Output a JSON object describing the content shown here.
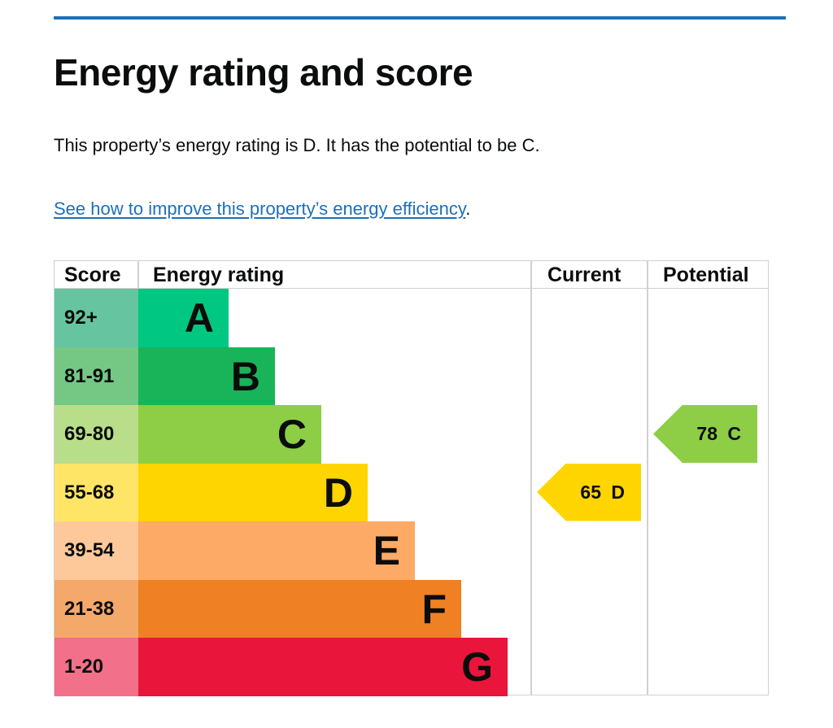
{
  "heading": "Energy rating and score",
  "summary": "This property’s energy rating is D. It has the potential to be C.",
  "link_text": "See how to improve this property’s energy efficiency",
  "link_suffix": ".",
  "accent_color": "#1d70b8",
  "table": {
    "headers": {
      "score": "Score",
      "rating": "Energy rating",
      "current": "Current",
      "potential": "Potential"
    },
    "bands": [
      {
        "score": "92+",
        "letter": "A",
        "color": "#00c781",
        "score_color": "#66c5a0"
      },
      {
        "score": "81-91",
        "letter": "B",
        "color": "#19b459",
        "score_color": "#75c883"
      },
      {
        "score": "69-80",
        "letter": "C",
        "color": "#8dce46",
        "score_color": "#b8de8a"
      },
      {
        "score": "55-68",
        "letter": "D",
        "color": "#ffd500",
        "score_color": "#ffe566"
      },
      {
        "score": "39-54",
        "letter": "E",
        "color": "#fcaa65",
        "score_color": "#fdc99a"
      },
      {
        "score": "21-38",
        "letter": "F",
        "color": "#ef8023",
        "score_color": "#f4a86a"
      },
      {
        "score": "1-20",
        "letter": "G",
        "color": "#e9153b",
        "score_color": "#f27089"
      }
    ],
    "current": {
      "label": "65 D",
      "score": 65,
      "band": "D"
    },
    "potential": {
      "label": "78 C",
      "score": 78,
      "band": "C"
    }
  }
}
